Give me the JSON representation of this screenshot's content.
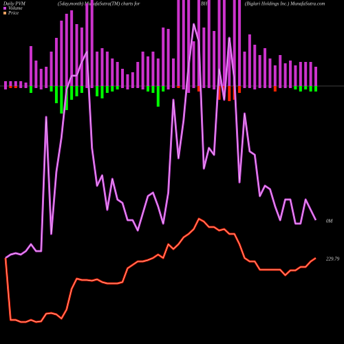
{
  "chart_data": {
    "type": "pvm",
    "title": "Daily PVM",
    "subtitle": "(5day,month) MunafaSutra(TM) charts for",
    "symbol": "BH",
    "company": "(Biglari Holdings Inc.) MunafaSutra.com",
    "ylim": [
      0,
      500
    ],
    "baseline": 375,
    "up_bars": {
      "color": "#cc33cc",
      "values": [
        7,
        7,
        7,
        7,
        5,
        58,
        37,
        25,
        28,
        50,
        70,
        95,
        105,
        110,
        90,
        85,
        120,
        125,
        50,
        55,
        50,
        40,
        35,
        25,
        17,
        20,
        35,
        50,
        43,
        50,
        40,
        85,
        83,
        40,
        125,
        125,
        125,
        65,
        125,
        85,
        125,
        80,
        125,
        125,
        70,
        125,
        125,
        50,
        75,
        60,
        45,
        55,
        40,
        30,
        45,
        33,
        37,
        30,
        35,
        35,
        35,
        28
      ]
    },
    "down_bars": {
      "colors": [
        "#cc33cc",
        "#ff2200",
        "#ff2200",
        "#cc33cc",
        "#cc33cc",
        "#00ff00",
        "#cc33cc",
        "#cc33cc",
        "#cc33cc",
        "#00ff00",
        "#00ff00",
        "#00ff00",
        "#00ff00",
        "#00ff00",
        "#00ff00",
        "#00ff00",
        "#cc33cc",
        "#cc33cc",
        "#00ff00",
        "#00ff00",
        "#00ff00",
        "#00ff00",
        "#00ff00",
        "#cc33cc",
        "#cc33cc",
        "#cc33cc",
        "#cc33cc",
        "#cc33cc",
        "#00ff00",
        "#00ff00",
        "#00ff00",
        "#00ff00",
        "#cc33cc",
        "#cc33cc",
        "#ff2200",
        "#cc33cc",
        "#cc33cc",
        "#cc33cc",
        "#ff2200",
        "#cc33cc",
        "#cc33cc",
        "#cc33cc",
        "#ff2200",
        "#ff2200",
        "#ff2200",
        "#ff2200",
        "#ff2200",
        "#cc33cc",
        "#cc33cc",
        "#cc33cc",
        "#cc33cc",
        "#cc33cc",
        "#cc33cc",
        "#ff2200",
        "#cc33cc",
        "#cc33cc",
        "#cc33cc",
        "#00ff00",
        "#00ff00",
        "#00ff00",
        "#00ff00",
        "#00ff00"
      ],
      "values": [
        -5,
        -3,
        -3,
        -3,
        -3,
        -10,
        -3,
        -5,
        -3,
        -8,
        -25,
        -40,
        -35,
        -20,
        -15,
        -10,
        -3,
        -3,
        -15,
        -18,
        -10,
        -8,
        -5,
        -3,
        -5,
        -3,
        -3,
        -5,
        -8,
        -10,
        -30,
        -8,
        -5,
        -3,
        -3,
        -5,
        -10,
        -3,
        -8,
        -3,
        -3,
        -5,
        -20,
        -15,
        -22,
        -20,
        -10,
        -3,
        -3,
        -5,
        -3,
        -3,
        -3,
        -8,
        -3,
        -3,
        -3,
        -5,
        -8,
        -5,
        -8,
        -8
      ]
    },
    "series": [
      {
        "name": "Volume",
        "color": "#cc44dd",
        "end_label": "0M",
        "values": [
          125,
          130,
          132,
          130,
          135,
          145,
          135,
          135,
          330,
          160,
          250,
          300,
          370,
          390,
          390,
          410,
          425,
          285,
          230,
          245,
          195,
          240,
          210,
          205,
          180,
          180,
          165,
          190,
          215,
          220,
          200,
          175,
          220,
          355,
          270,
          325,
          405,
          465,
          440,
          255,
          285,
          275,
          400,
          355,
          445,
          385,
          235,
          335,
          280,
          275,
          215,
          230,
          225,
          200,
          180,
          210,
          210,
          175,
          175,
          210,
          195,
          180
        ]
      },
      {
        "name": "Price",
        "color": "#ff2200",
        "legend_color": "#e8a060",
        "end_label": "229.79",
        "values": [
          125,
          35,
          35,
          32,
          32,
          35,
          32,
          33,
          44,
          45,
          43,
          37,
          50,
          80,
          95,
          93,
          93,
          92,
          94,
          90,
          88,
          88,
          88,
          90,
          110,
          115,
          120,
          120,
          122,
          125,
          130,
          125,
          145,
          138,
          145,
          155,
          160,
          167,
          182,
          178,
          170,
          170,
          165,
          167,
          160,
          160,
          145,
          125,
          120,
          120,
          108,
          108,
          108,
          108,
          108,
          100,
          107,
          107,
          112,
          112,
          120,
          125
        ]
      }
    ]
  }
}
